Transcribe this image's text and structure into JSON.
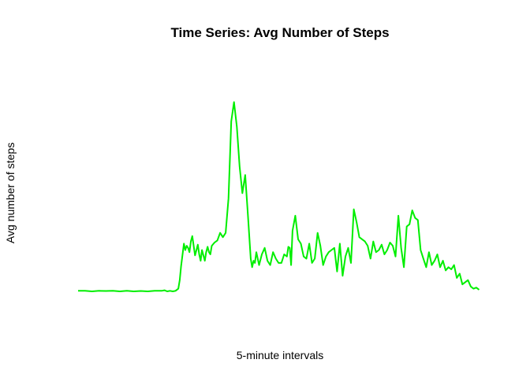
{
  "chart_data": {
    "type": "line",
    "title": "Time Series: Avg Number of Steps",
    "xlabel": "5-minute intervals",
    "ylabel": "Avg number of steps",
    "axes_shown": false,
    "grid": false,
    "xlim": [
      0,
      290
    ],
    "ylim": [
      0,
      210
    ],
    "series": [
      {
        "color": "#00ee00",
        "x": [
          0,
          5,
          10,
          15,
          20,
          25,
          30,
          35,
          40,
          45,
          50,
          55,
          60,
          62,
          64,
          66,
          68,
          70,
          72,
          73,
          74,
          76,
          77,
          78,
          79,
          80,
          81,
          82,
          84,
          85,
          86,
          87,
          88,
          89,
          90,
          91,
          92,
          93,
          94,
          95,
          96,
          98,
          100,
          102,
          104,
          106,
          108,
          110,
          112,
          114,
          116,
          118,
          120,
          122,
          124,
          125,
          126,
          127,
          128,
          130,
          132,
          134,
          136,
          138,
          140,
          142,
          144,
          146,
          148,
          150,
          151,
          152,
          153,
          154,
          156,
          158,
          160,
          162,
          164,
          166,
          168,
          170,
          172,
          174,
          176,
          178,
          180,
          182,
          184,
          186,
          188,
          190,
          192,
          194,
          196,
          198,
          200,
          202,
          204,
          206,
          208,
          210,
          212,
          214,
          216,
          218,
          220,
          222,
          224,
          226,
          228,
          230,
          232,
          234,
          236,
          238,
          240,
          242,
          244,
          246,
          248,
          250,
          252,
          254,
          256,
          258,
          260,
          262,
          264,
          266,
          268,
          270,
          272,
          274,
          276,
          278,
          280,
          282,
          284,
          286,
          288
        ],
        "values": [
          2,
          2,
          1.5,
          2,
          1.8,
          2,
          1.5,
          2,
          1.5,
          1.8,
          1.5,
          2,
          2,
          2.5,
          1.5,
          2,
          1.5,
          2,
          4,
          12,
          25,
          46,
          40,
          44,
          42,
          38,
          48,
          53,
          35,
          40,
          45,
          36,
          30,
          40,
          35,
          30,
          38,
          43,
          38,
          36,
          44,
          47,
          49,
          56,
          52,
          56,
          88,
          160,
          178,
          155,
          118,
          93,
          110,
          72,
          32,
          24,
          30,
          28,
          38,
          26,
          36,
          42,
          30,
          26,
          38,
          32,
          28,
          28,
          36,
          34,
          43,
          42,
          26,
          58,
          72,
          50,
          46,
          34,
          32,
          46,
          28,
          32,
          56,
          44,
          26,
          34,
          38,
          40,
          42,
          20,
          46,
          16,
          34,
          42,
          28,
          78,
          66,
          52,
          50,
          48,
          44,
          32,
          48,
          38,
          40,
          45,
          36,
          40,
          47,
          44,
          34,
          72,
          42,
          24,
          62,
          64,
          77,
          70,
          68,
          40,
          32,
          24,
          38,
          26,
          30,
          36,
          24,
          30,
          21,
          24,
          22,
          26,
          14,
          18,
          8,
          10,
          12,
          6,
          4,
          5,
          3
        ]
      }
    ]
  }
}
